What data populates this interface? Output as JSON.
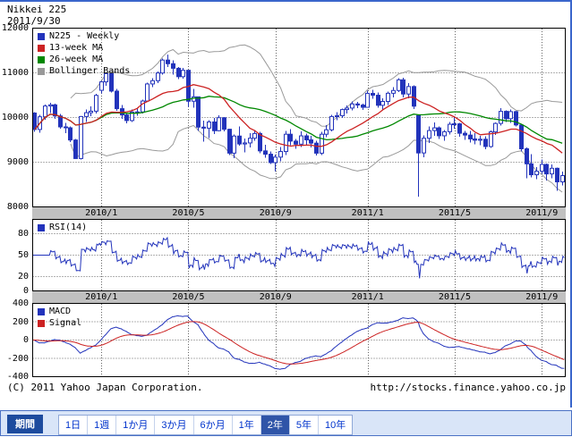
{
  "header": {
    "title": "Nikkei 225",
    "date": "2011/9/30"
  },
  "footer": {
    "copyright": "(C) 2011 Yahoo Japan Corporation.",
    "url": "http://stocks.finance.yahoo.co.jp"
  },
  "period_bar": {
    "label": "期間",
    "options": [
      "1日",
      "1週",
      "1か月",
      "3か月",
      "6か月",
      "1年",
      "2年",
      "5年",
      "10年"
    ],
    "option_keys": [
      "1d",
      "1w",
      "1mo",
      "3mo",
      "6mo",
      "1y",
      "2y",
      "5y",
      "10y"
    ],
    "selected": "2年"
  },
  "colors": {
    "candle_blue": "#2233bb",
    "up_candle_fill": "#ffffff",
    "ma_red": "#cc2222",
    "ma_green": "#008800",
    "bollinger_gray": "#999999",
    "grid_dot": "#666666",
    "axis_band_bg": "#c0c0c0",
    "frame_blue": "#4a70c4",
    "bar_label_bg": "#1d4b9e",
    "button_text": "#0033cc",
    "button_selected_bg": "#2f55a8"
  },
  "chart_data": {
    "type": "candlestick",
    "symbol": "N225",
    "interval": "weekly",
    "x_ticks": [
      {
        "label": "2010/1",
        "index": 13
      },
      {
        "label": "2010/5",
        "index": 30
      },
      {
        "label": "2010/9",
        "index": 47
      },
      {
        "label": "2011/1",
        "index": 65
      },
      {
        "label": "2011/5",
        "index": 82
      },
      {
        "label": "2011/9",
        "index": 99
      }
    ],
    "main_panel": {
      "legend": [
        {
          "label": "N225 - Weekly",
          "color": "#2233bb"
        },
        {
          "label": "13-week MA",
          "color": "#cc2222"
        },
        {
          "label": "26-week MA",
          "color": "#008800"
        },
        {
          "label": "Bollinger Bands",
          "color": "#999999"
        }
      ],
      "ylim": [
        8000,
        12000
      ],
      "yticks": [
        12000,
        11000,
        10000,
        9000,
        8000
      ],
      "ma_periods": [
        13,
        26
      ],
      "bollinger": {
        "period": 20,
        "stddev": 2
      },
      "candles_ohlc": [
        [
          10100,
          10120,
          9680,
          9732
        ],
        [
          9732,
          10060,
          9660,
          10016
        ],
        [
          10016,
          10290,
          9950,
          10257
        ],
        [
          10257,
          10330,
          10100,
          10283
        ],
        [
          10283,
          10310,
          9970,
          10035
        ],
        [
          10035,
          10080,
          9750,
          9790
        ],
        [
          9790,
          9880,
          9650,
          9770
        ],
        [
          9770,
          9800,
          9450,
          9497
        ],
        [
          9497,
          9520,
          9076,
          9082
        ],
        [
          9082,
          10035,
          9060,
          10022
        ],
        [
          10022,
          10180,
          9900,
          10108
        ],
        [
          10108,
          10250,
          10030,
          10142
        ],
        [
          10142,
          10530,
          10090,
          10495
        ],
        [
          10609,
          10820,
          10540,
          10798
        ],
        [
          10798,
          11000,
          10710,
          10982
        ],
        [
          10982,
          10995,
          10560,
          10591
        ],
        [
          10591,
          10640,
          10150,
          10198
        ],
        [
          10198,
          10280,
          9970,
          10057
        ],
        [
          10057,
          10100,
          9870,
          9932
        ],
        [
          9932,
          10180,
          9900,
          10123
        ],
        [
          10123,
          10220,
          10040,
          10126
        ],
        [
          10126,
          10400,
          10090,
          10369
        ],
        [
          10369,
          10780,
          10350,
          10751
        ],
        [
          10751,
          10880,
          10680,
          10824
        ],
        [
          10824,
          11030,
          10770,
          10996
        ],
        [
          10996,
          11320,
          10960,
          11286
        ],
        [
          11286,
          11408,
          11130,
          11204
        ],
        [
          11204,
          11280,
          10960,
          11102
        ],
        [
          11102,
          11130,
          10860,
          10914
        ],
        [
          10914,
          11110,
          10870,
          11057
        ],
        [
          11057,
          11060,
          10240,
          10365
        ],
        [
          10365,
          10640,
          10220,
          10462
        ],
        [
          10462,
          10470,
          9700,
          9785
        ],
        [
          9785,
          9930,
          9460,
          9762
        ],
        [
          9762,
          9940,
          9540,
          9901
        ],
        [
          9901,
          9990,
          9630,
          9705
        ],
        [
          9705,
          10050,
          9690,
          9995
        ],
        [
          9995,
          10010,
          9690,
          9737
        ],
        [
          9737,
          9750,
          9160,
          9203
        ],
        [
          9203,
          9620,
          9090,
          9585
        ],
        [
          9585,
          9800,
          9370,
          9408
        ],
        [
          9408,
          9530,
          9220,
          9431
        ],
        [
          9431,
          9650,
          9330,
          9537
        ],
        [
          9537,
          9720,
          9480,
          9642
        ],
        [
          9642,
          9680,
          9200,
          9253
        ],
        [
          9253,
          9390,
          9100,
          9179
        ],
        [
          9179,
          9240,
          8960,
          8991
        ],
        [
          8991,
          9170,
          8796,
          9114
        ],
        [
          9114,
          9340,
          9020,
          9239
        ],
        [
          9239,
          9700,
          9160,
          9626
        ],
        [
          9626,
          9740,
          9380,
          9472
        ],
        [
          9472,
          9520,
          9300,
          9404
        ],
        [
          9404,
          9690,
          9340,
          9589
        ],
        [
          9589,
          9640,
          9390,
          9500
        ],
        [
          9500,
          9590,
          9330,
          9427
        ],
        [
          9427,
          9480,
          9150,
          9202
        ],
        [
          9202,
          9680,
          9160,
          9626
        ],
        [
          9626,
          9830,
          9560,
          9725
        ],
        [
          9725,
          10060,
          9690,
          10022
        ],
        [
          10022,
          10120,
          9940,
          10039
        ],
        [
          10039,
          10200,
          9990,
          10178
        ],
        [
          10178,
          10270,
          10090,
          10212
        ],
        [
          10212,
          10360,
          10160,
          10304
        ],
        [
          10304,
          10350,
          10210,
          10279
        ],
        [
          10279,
          10310,
          10170,
          10229
        ],
        [
          10229,
          10600,
          10220,
          10541
        ],
        [
          10541,
          10620,
          10420,
          10499
        ],
        [
          10499,
          10560,
          10220,
          10274
        ],
        [
          10274,
          10430,
          10180,
          10360
        ],
        [
          10360,
          10580,
          10280,
          10543
        ],
        [
          10543,
          10680,
          10450,
          10605
        ],
        [
          10605,
          10880,
          10570,
          10843
        ],
        [
          10843,
          10890,
          10450,
          10526
        ],
        [
          10526,
          10770,
          10430,
          10693
        ],
        [
          10693,
          10720,
          10190,
          10254
        ],
        [
          10044,
          10049,
          8227,
          9207
        ],
        [
          9207,
          9600,
          9110,
          9536
        ],
        [
          9536,
          9800,
          9430,
          9708
        ],
        [
          9708,
          9890,
          9590,
          9768
        ],
        [
          9768,
          9800,
          9520,
          9591
        ],
        [
          9591,
          9720,
          9480,
          9682
        ],
        [
          9682,
          9900,
          9620,
          9849
        ],
        [
          9849,
          10020,
          9750,
          9859
        ],
        [
          9859,
          9880,
          9570,
          9648
        ],
        [
          9648,
          9700,
          9500,
          9607
        ],
        [
          9607,
          9700,
          9440,
          9521
        ],
        [
          9521,
          9650,
          9400,
          9492
        ],
        [
          9492,
          9590,
          9380,
          9514
        ],
        [
          9514,
          9580,
          9290,
          9351
        ],
        [
          9351,
          9710,
          9320,
          9678
        ],
        [
          9678,
          9890,
          9610,
          9868
        ],
        [
          9868,
          10210,
          9820,
          10138
        ],
        [
          10138,
          10160,
          9900,
          9974
        ],
        [
          9974,
          10180,
          9880,
          10132
        ],
        [
          10132,
          10150,
          9800,
          9833
        ],
        [
          9833,
          9850,
          9240,
          9300
        ],
        [
          9300,
          9330,
          8640,
          8963
        ],
        [
          8963,
          9180,
          8660,
          8719
        ],
        [
          8719,
          8890,
          8620,
          8798
        ],
        [
          8798,
          9060,
          8740,
          8950
        ],
        [
          8950,
          8970,
          8590,
          8738
        ],
        [
          8738,
          8950,
          8640,
          8864
        ],
        [
          8864,
          8880,
          8360,
          8560
        ],
        [
          8560,
          8790,
          8480,
          8700
        ]
      ]
    },
    "rsi_panel": {
      "legend": [
        {
          "label": "RSI(14)",
          "color": "#2233bb"
        }
      ],
      "period": 14,
      "ylim": [
        0,
        100
      ],
      "yticks": [
        80,
        50,
        20,
        0
      ]
    },
    "macd_panel": {
      "legend": [
        {
          "label": "MACD",
          "color": "#2233bb"
        },
        {
          "label": "Signal",
          "color": "#cc2222"
        }
      ],
      "params": {
        "fast": 12,
        "slow": 26,
        "signal": 9
      },
      "ylim": [
        -400,
        400
      ],
      "yticks": [
        400,
        200,
        0,
        -200,
        -400
      ]
    }
  }
}
